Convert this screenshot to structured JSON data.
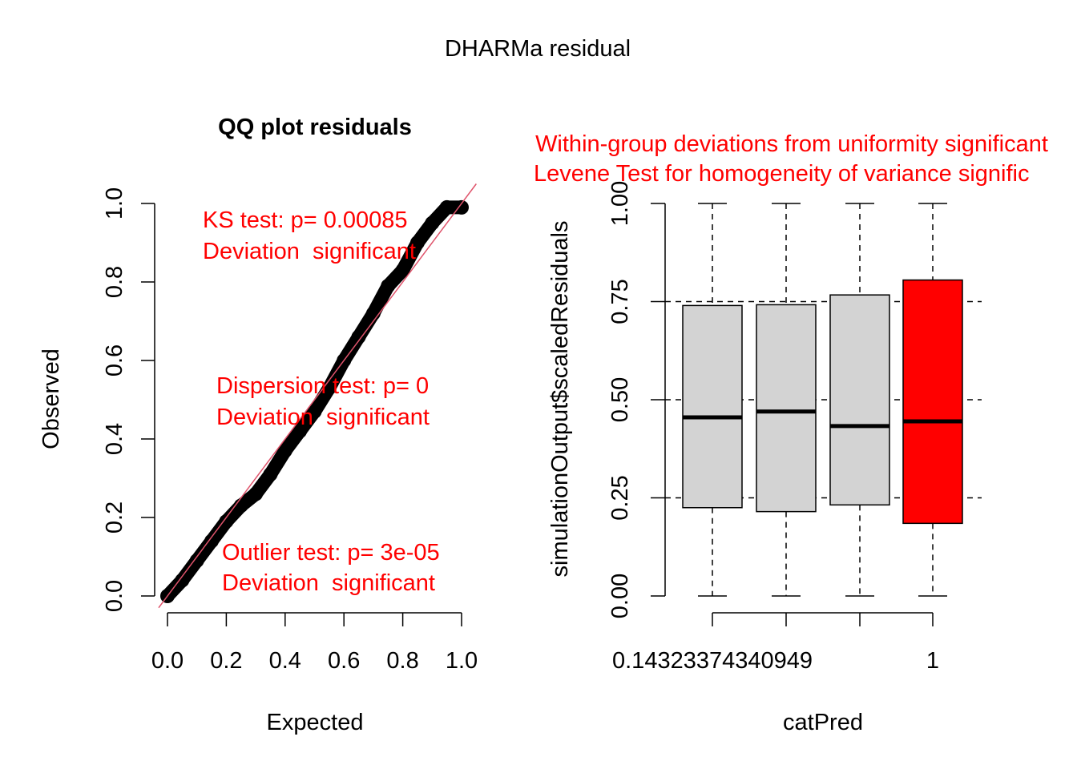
{
  "figure": {
    "title": "DHARMa residual"
  },
  "colors": {
    "red": "#ff0000",
    "refline": "#df536b",
    "box_fill": "#d3d3d3",
    "black": "#000000"
  },
  "chart_data": [
    {
      "type": "scatter",
      "title": "QQ plot residuals",
      "xlabel": "Expected",
      "ylabel": "Observed",
      "xlim": [
        0,
        1
      ],
      "ylim": [
        0,
        1
      ],
      "xticks": [
        "0.0",
        "0.2",
        "0.4",
        "0.6",
        "0.8",
        "1.0"
      ],
      "yticks": [
        "0.0",
        "0.2",
        "0.4",
        "0.6",
        "0.8",
        "1.0"
      ],
      "grid": false,
      "reference_line": {
        "slope": 1,
        "intercept": 0,
        "color": "#df536b"
      },
      "points": {
        "x": [
          0.0,
          0.05,
          0.1,
          0.15,
          0.2,
          0.25,
          0.3,
          0.35,
          0.4,
          0.45,
          0.5,
          0.55,
          0.6,
          0.65,
          0.7,
          0.75,
          0.8,
          0.85,
          0.9,
          0.95,
          1.0
        ],
        "y": [
          0.0,
          0.04,
          0.09,
          0.14,
          0.19,
          0.23,
          0.26,
          0.31,
          0.37,
          0.42,
          0.47,
          0.53,
          0.6,
          0.66,
          0.72,
          0.79,
          0.83,
          0.9,
          0.95,
          0.99,
          0.99
        ]
      },
      "annotations": [
        {
          "lines": [
            "KS test: p= 0.00085",
            "Deviation  significant"
          ],
          "color": "#ff0000"
        },
        {
          "lines": [
            "Dispersion test: p= 0",
            "Deviation  significant"
          ],
          "color": "#ff0000"
        },
        {
          "lines": [
            "Outlier test: p= 3e-05",
            "Deviation  significant"
          ],
          "color": "#ff0000"
        }
      ]
    },
    {
      "type": "boxplot",
      "title_lines": [
        "Within-group deviations from uniformity significant",
        "Levene Test for homogeneity of variance signific"
      ],
      "title_color": "#ff0000",
      "xlabel": "catPred",
      "ylabel": "simulationOutput$scaledResiduals",
      "ylim": [
        0,
        1
      ],
      "yticks": [
        "0.00",
        "0.25",
        "0.50",
        "0.75",
        "1.00"
      ],
      "hlines": [
        0.25,
        0.5,
        0.75
      ],
      "xtick_labels": [
        "0.14323374340949",
        "",
        "",
        "1"
      ],
      "boxes": [
        {
          "min": 0.0,
          "q1": 0.225,
          "median": 0.455,
          "q3": 0.74,
          "max": 1.0,
          "fill": "#d3d3d3"
        },
        {
          "min": 0.0,
          "q1": 0.215,
          "median": 0.47,
          "q3": 0.742,
          "max": 1.0,
          "fill": "#d3d3d3"
        },
        {
          "min": 0.0,
          "q1": 0.232,
          "median": 0.433,
          "q3": 0.767,
          "max": 1.0,
          "fill": "#d3d3d3"
        },
        {
          "min": 0.0,
          "q1": 0.185,
          "median": 0.445,
          "q3": 0.805,
          "max": 1.0,
          "fill": "#ff0000"
        }
      ]
    }
  ]
}
